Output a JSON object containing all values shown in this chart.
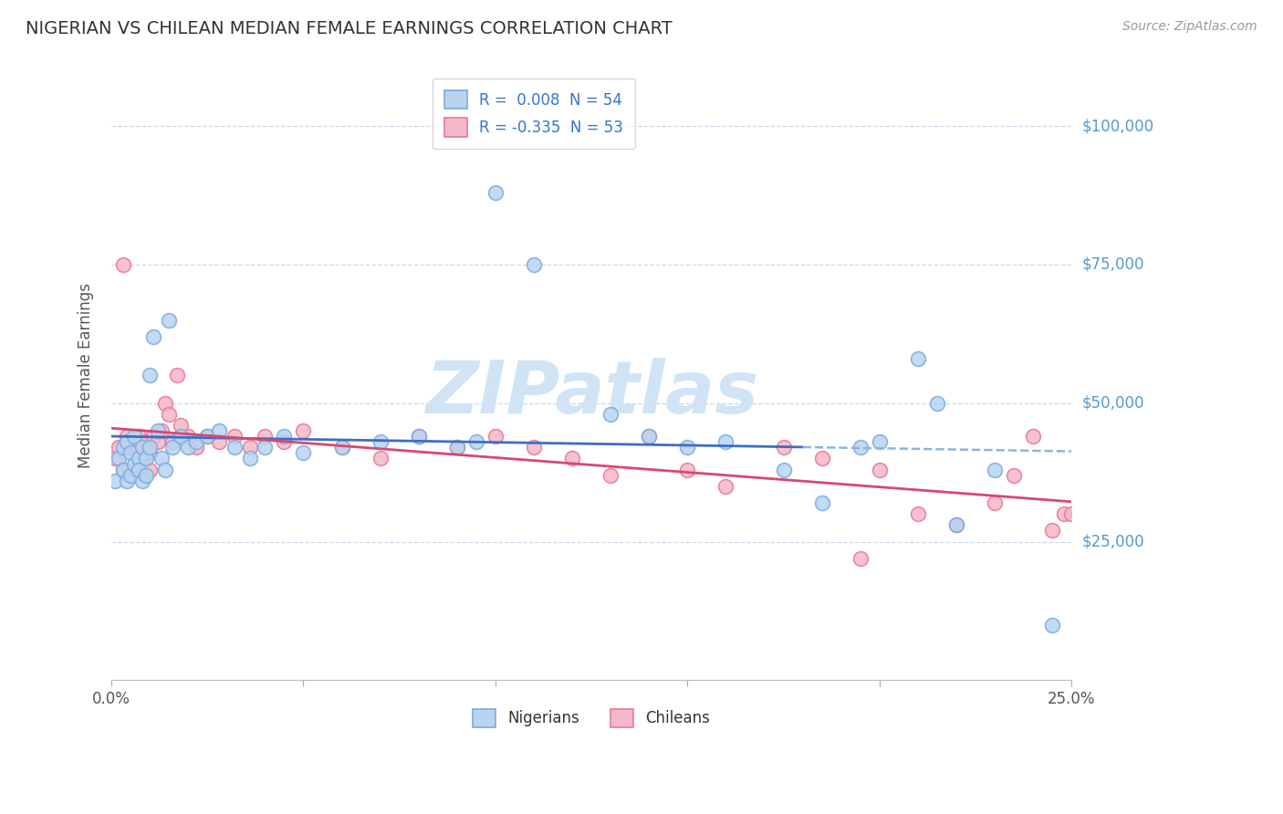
{
  "title": "NIGERIAN VS CHILEAN MEDIAN FEMALE EARNINGS CORRELATION CHART",
  "source": "Source: ZipAtlas.com",
  "ylabel": "Median Female Earnings",
  "xlim": [
    0.0,
    0.25
  ],
  "ylim": [
    0,
    110000
  ],
  "yticks": [
    25000,
    50000,
    75000,
    100000
  ],
  "ytick_labels": [
    "$25,000",
    "$50,000",
    "$75,000",
    "$100,000"
  ],
  "xtick_labels": [
    "0.0%",
    "25.0%"
  ],
  "xticks": [
    0.0,
    0.25
  ],
  "legend_entries": [
    {
      "label_r": "R =  0.008",
      "label_n": "N = 54",
      "color": "#adc9ee"
    },
    {
      "label_r": "R = -0.335",
      "label_n": "N = 53",
      "color": "#f0a8b8"
    }
  ],
  "legend_bottom": [
    "Nigerians",
    "Chileans"
  ],
  "blue_scatter_face": "#b8d4f0",
  "blue_scatter_edge": "#7aabe0",
  "pink_scatter_face": "#f5b8c8",
  "pink_scatter_edge": "#e87898",
  "blue_line_color": "#3a6fc4",
  "pink_line_color": "#d84870",
  "blue_line_dashed_color": "#8ab4e0",
  "grid_color": "#c8d8e8",
  "watermark": "ZIPatlas",
  "watermark_color": "#d0e4f5",
  "title_color": "#333333",
  "ylabel_color": "#555555",
  "ytick_color": "#5599cc",
  "xtick_color": "#555555",
  "background_color": "#ffffff",
  "nigerians_x": [
    0.001,
    0.002,
    0.003,
    0.003,
    0.004,
    0.004,
    0.005,
    0.005,
    0.006,
    0.006,
    0.007,
    0.007,
    0.008,
    0.008,
    0.009,
    0.009,
    0.01,
    0.01,
    0.011,
    0.012,
    0.013,
    0.014,
    0.015,
    0.016,
    0.018,
    0.02,
    0.022,
    0.025,
    0.028,
    0.032,
    0.036,
    0.04,
    0.045,
    0.05,
    0.06,
    0.07,
    0.08,
    0.09,
    0.095,
    0.1,
    0.11,
    0.13,
    0.14,
    0.15,
    0.16,
    0.175,
    0.185,
    0.195,
    0.2,
    0.21,
    0.215,
    0.22,
    0.23,
    0.245
  ],
  "nigerians_y": [
    36000,
    40000,
    38000,
    42000,
    36000,
    43000,
    37000,
    41000,
    39000,
    44000,
    40000,
    38000,
    36000,
    42000,
    40000,
    37000,
    55000,
    42000,
    62000,
    45000,
    40000,
    38000,
    65000,
    42000,
    44000,
    42000,
    43000,
    44000,
    45000,
    42000,
    40000,
    42000,
    44000,
    41000,
    42000,
    43000,
    44000,
    42000,
    43000,
    88000,
    75000,
    48000,
    44000,
    42000,
    43000,
    38000,
    32000,
    42000,
    43000,
    58000,
    50000,
    28000,
    38000,
    10000
  ],
  "chileans_x": [
    0.001,
    0.002,
    0.003,
    0.003,
    0.004,
    0.005,
    0.006,
    0.007,
    0.007,
    0.008,
    0.009,
    0.01,
    0.01,
    0.011,
    0.012,
    0.013,
    0.014,
    0.015,
    0.016,
    0.017,
    0.018,
    0.02,
    0.022,
    0.025,
    0.028,
    0.032,
    0.036,
    0.04,
    0.045,
    0.05,
    0.06,
    0.07,
    0.08,
    0.09,
    0.1,
    0.11,
    0.12,
    0.13,
    0.14,
    0.15,
    0.16,
    0.175,
    0.185,
    0.195,
    0.2,
    0.21,
    0.22,
    0.23,
    0.235,
    0.24,
    0.245,
    0.248,
    0.25
  ],
  "chileans_y": [
    40000,
    42000,
    75000,
    38000,
    44000,
    42000,
    38000,
    44000,
    42000,
    40000,
    43000,
    41000,
    38000,
    44000,
    43000,
    45000,
    50000,
    48000,
    43000,
    55000,
    46000,
    44000,
    42000,
    44000,
    43000,
    44000,
    42000,
    44000,
    43000,
    45000,
    42000,
    40000,
    44000,
    42000,
    44000,
    42000,
    40000,
    37000,
    44000,
    38000,
    35000,
    42000,
    40000,
    22000,
    38000,
    30000,
    28000,
    32000,
    37000,
    44000,
    27000,
    30000,
    30000
  ]
}
